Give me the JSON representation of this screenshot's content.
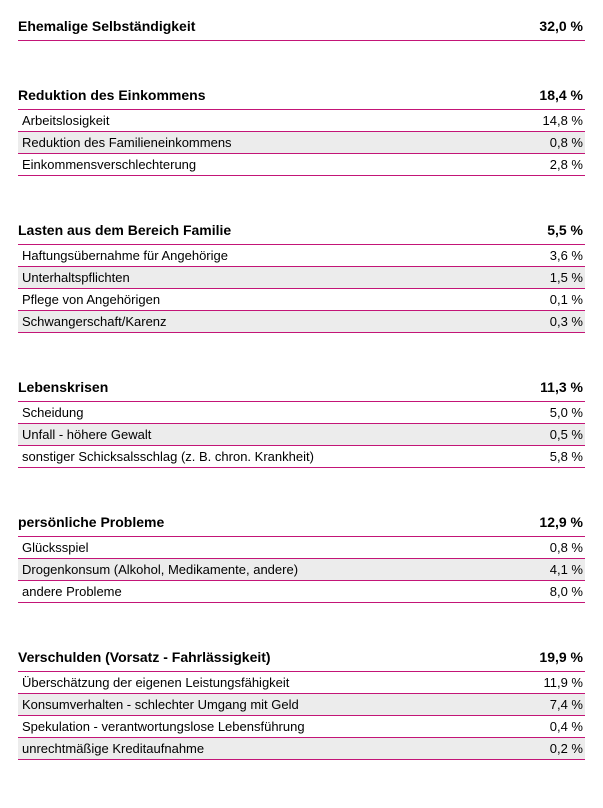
{
  "colors": {
    "accent": "#c31577",
    "alt_row_bg": "#ececec",
    "row_border": "#c31577",
    "header_border": "#c31577",
    "text": "#000000"
  },
  "sections": [
    {
      "title": "Ehemalige Selbständigkeit",
      "pct": "32,0 %",
      "rows": []
    },
    {
      "title": "Reduktion des Einkommens",
      "pct": "18,4 %",
      "rows": [
        {
          "label": "Arbeitslosigkeit",
          "pct": "14,8 %"
        },
        {
          "label": "Reduktion des Familieneinkommens",
          "pct": "0,8 %"
        },
        {
          "label": "Einkommensverschlechterung",
          "pct": "2,8 %"
        }
      ]
    },
    {
      "title": "Lasten aus dem Bereich Familie",
      "pct": "5,5 %",
      "rows": [
        {
          "label": "Haftungsübernahme für Angehörige",
          "pct": "3,6 %"
        },
        {
          "label": "Unterhaltspflichten",
          "pct": "1,5 %"
        },
        {
          "label": "Pflege von Angehörigen",
          "pct": "0,1 %"
        },
        {
          "label": "Schwangerschaft/Karenz",
          "pct": "0,3 %"
        }
      ]
    },
    {
      "title": "Lebenskrisen",
      "pct": "11,3 %",
      "rows": [
        {
          "label": "Scheidung",
          "pct": "5,0 %"
        },
        {
          "label": "Unfall - höhere Gewalt",
          "pct": "0,5 %"
        },
        {
          "label": "sonstiger Schicksalsschlag (z. B. chron. Krankheit)",
          "pct": "5,8 %"
        }
      ]
    },
    {
      "title": "persönliche Probleme",
      "pct": "12,9 %",
      "rows": [
        {
          "label": "Glücksspiel",
          "pct": "0,8 %"
        },
        {
          "label": "Drogenkonsum (Alkohol, Medikamente, andere)",
          "pct": "4,1 %"
        },
        {
          "label": "andere Probleme",
          "pct": "8,0 %"
        }
      ]
    },
    {
      "title": "Verschulden (Vorsatz - Fahrlässigkeit)",
      "pct": "19,9 %",
      "rows": [
        {
          "label": "Überschätzung der eigenen Leistungsfähigkeit",
          "pct": "11,9 %"
        },
        {
          "label": "Konsumverhalten - schlechter Umgang mit Geld",
          "pct": "7,4 %"
        },
        {
          "label": "Spekulation - verantwortungslose Lebensführung",
          "pct": "0,4 %"
        },
        {
          "label": "unrechtmäßige Kreditaufnahme",
          "pct": "0,2 %"
        }
      ]
    }
  ]
}
